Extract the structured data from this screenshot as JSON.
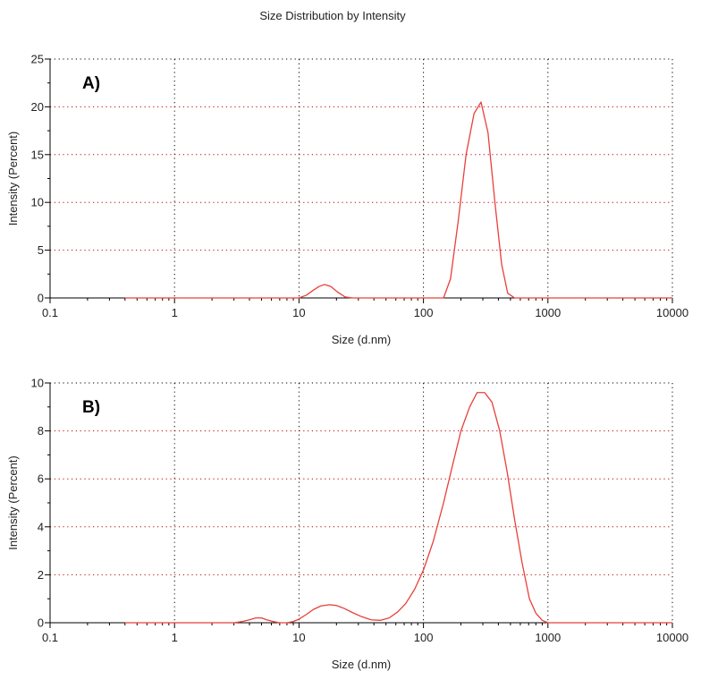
{
  "figure": {
    "title": "Size Distribution by Intensity",
    "colors": {
      "series": "#e8403a",
      "grid_horizontal": "#c00000",
      "grid_vertical": "#000000"
    }
  },
  "chart_data": [
    {
      "type": "line",
      "panel_label": "A)",
      "xlabel": "Size (d.nm)",
      "ylabel": "Intensity (Percent)",
      "x_scale": "log",
      "xlim": [
        0.1,
        10000
      ],
      "ylim": [
        0,
        25
      ],
      "x_ticks": [
        0.1,
        1,
        10,
        100,
        1000,
        10000
      ],
      "x_tick_labels": [
        "0.1",
        "1",
        "10",
        "100",
        "1000",
        "10000"
      ],
      "y_ticks": [
        0,
        5,
        10,
        15,
        20,
        25
      ],
      "y_tick_labels": [
        "0",
        "5",
        "10",
        "15",
        "20",
        "25"
      ],
      "y_minor_step": 2.5,
      "grid": true,
      "series": [
        {
          "x": [
            0.4,
            1,
            5,
            10,
            11.5,
            13,
            14.5,
            16,
            18,
            20.5,
            23.5,
            27,
            50,
            100,
            145,
            165,
            190,
            220,
            255,
            290,
            330,
            375,
            425,
            475,
            540,
            700,
            1000,
            3000,
            10000
          ],
          "y": [
            0,
            0,
            0,
            0,
            0.3,
            0.8,
            1.2,
            1.4,
            1.2,
            0.6,
            0.1,
            0,
            0,
            0,
            0,
            2.0,
            8.0,
            15.0,
            19.3,
            20.5,
            17.3,
            10.0,
            3.5,
            0.5,
            0,
            0,
            0,
            0,
            0
          ]
        }
      ]
    },
    {
      "type": "line",
      "panel_label": "B)",
      "xlabel": "Size (d.nm)",
      "ylabel": "Intensity (Percent)",
      "x_scale": "log",
      "xlim": [
        0.1,
        10000
      ],
      "ylim": [
        0,
        10
      ],
      "x_ticks": [
        0.1,
        1,
        10,
        100,
        1000,
        10000
      ],
      "x_tick_labels": [
        "0.1",
        "1",
        "10",
        "100",
        "1000",
        "10000"
      ],
      "y_ticks": [
        0,
        2,
        4,
        6,
        8,
        10
      ],
      "y_tick_labels": [
        "0",
        "2",
        "4",
        "6",
        "8",
        "10"
      ],
      "y_minor_step": 1,
      "grid": true,
      "series": [
        {
          "x": [
            0.4,
            1,
            2,
            3,
            3.5,
            4,
            4.5,
            5,
            5.5,
            6.2,
            7,
            8,
            9,
            10,
            11.5,
            13,
            15,
            17.5,
            20,
            23,
            27,
            32,
            38,
            45,
            53,
            62,
            72,
            85,
            100,
            120,
            145,
            170,
            200,
            235,
            270,
            310,
            355,
            410,
            470,
            540,
            620,
            710,
            800,
            900,
            1000,
            1500,
            3000,
            5000,
            10000
          ],
          "y": [
            0,
            0,
            0,
            0,
            0.05,
            0.12,
            0.2,
            0.2,
            0.12,
            0.05,
            0,
            0,
            0.05,
            0.15,
            0.35,
            0.55,
            0.7,
            0.75,
            0.72,
            0.6,
            0.42,
            0.25,
            0.12,
            0.1,
            0.2,
            0.45,
            0.8,
            1.4,
            2.2,
            3.4,
            5.0,
            6.5,
            8.0,
            9.0,
            9.6,
            9.6,
            9.2,
            8.0,
            6.3,
            4.3,
            2.5,
            1.0,
            0.4,
            0.1,
            0,
            0,
            0,
            0,
            0
          ]
        }
      ]
    }
  ]
}
